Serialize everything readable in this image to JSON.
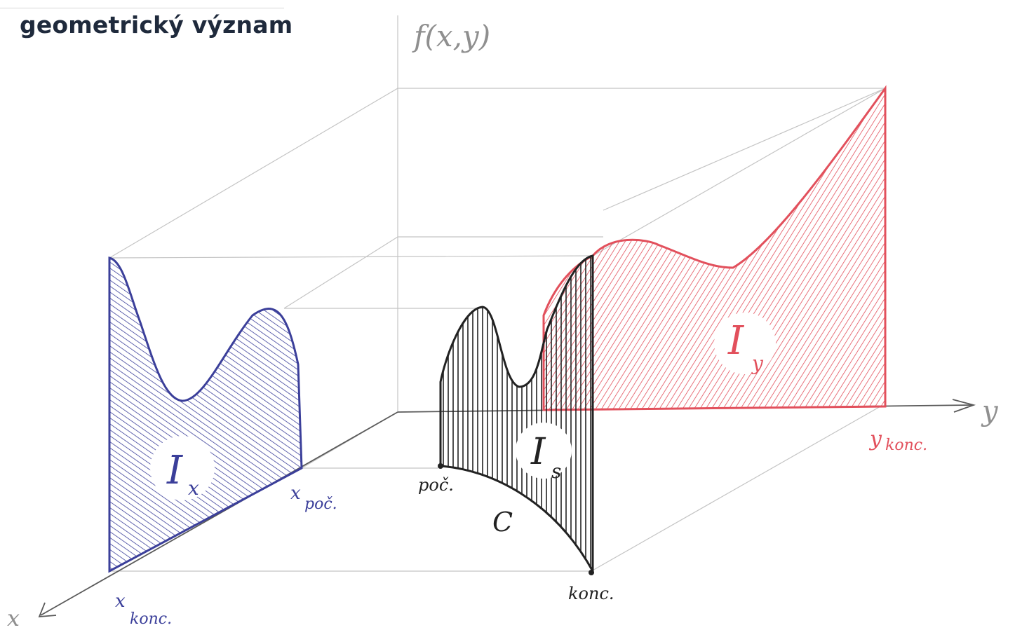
{
  "title": "geometrický význam",
  "axes": {
    "z_label": "f(x,y)",
    "y_label": "y",
    "x_label": "x"
  },
  "labels": {
    "x_start": "x",
    "x_start_sub": "poč.",
    "x_end": "x",
    "x_end_sub": "konc.",
    "y_end": "y",
    "y_end_sub": "konc.",
    "curve_start": "poč.",
    "curve_end": "konc.",
    "curve_name": "C"
  },
  "integrals": {
    "ix": "I",
    "ix_sub": "x",
    "iy": "I",
    "iy_sub": "y",
    "is": "I",
    "is_sub": "s"
  },
  "colors": {
    "blue": "#3b3f9a",
    "red": "#e2505c",
    "black": "#222222",
    "pencil": "#bdbdbd",
    "title": "#1f2a3c"
  }
}
